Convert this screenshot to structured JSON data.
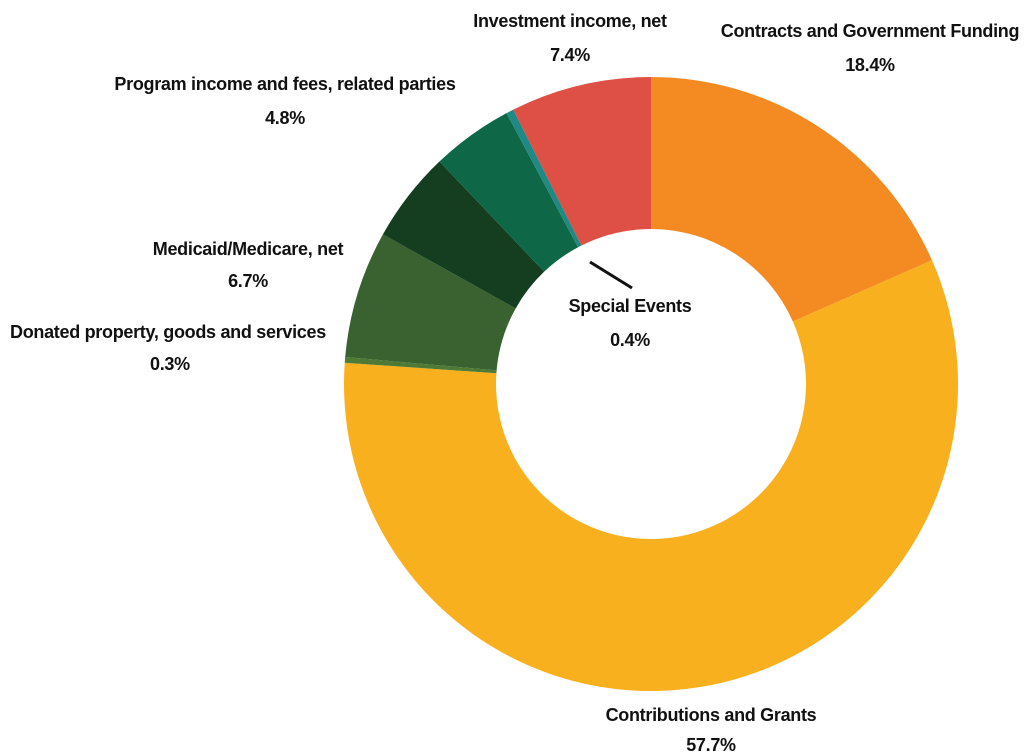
{
  "chart_data": {
    "type": "pie",
    "donut": true,
    "title": "",
    "slices": [
      {
        "label": "Contracts and Government Funding",
        "value": 18.4,
        "display": "18.4%",
        "color": "#F38A22"
      },
      {
        "label": "Contributions and Grants",
        "value": 57.7,
        "display": "57.7%",
        "color": "#F8B01E"
      },
      {
        "label": "Donated property, goods and services",
        "value": 0.3,
        "display": "0.3%",
        "color": "#4E7A35"
      },
      {
        "label": "Medicaid/Medicare, net",
        "value": 6.7,
        "display": "6.7%",
        "color": "#3A6230"
      },
      {
        "label": "Program income and fees, related parties",
        "value": 4.8,
        "display": "4.8%",
        "color": "#153D20"
      },
      {
        "label": "Program income and fees, related parties (second segment)",
        "value": 4.3,
        "display": "",
        "color": "#0E6746"
      },
      {
        "label": "Special Events",
        "value": 0.4,
        "display": "0.4%",
        "color": "#1F8A84"
      },
      {
        "label": "Investment income, net",
        "value": 7.4,
        "display": "7.4%",
        "color": "#DE4F45"
      }
    ]
  },
  "labels": {
    "contracts": {
      "name": "Contracts and Government Funding",
      "pct": "18.4%"
    },
    "contributions": {
      "name": "Contributions and Grants",
      "pct": "57.7%"
    },
    "donated": {
      "name": "Donated property, goods and services",
      "pct": "0.3%"
    },
    "medicaid": {
      "name": "Medicaid/Medicare, net",
      "pct": "6.7%"
    },
    "program": {
      "name": "Program income and fees, related parties",
      "pct": "4.8%"
    },
    "special": {
      "name": "Special Events",
      "pct": "0.4%"
    },
    "investment": {
      "name": "Investment income, net",
      "pct": "7.4%"
    }
  }
}
